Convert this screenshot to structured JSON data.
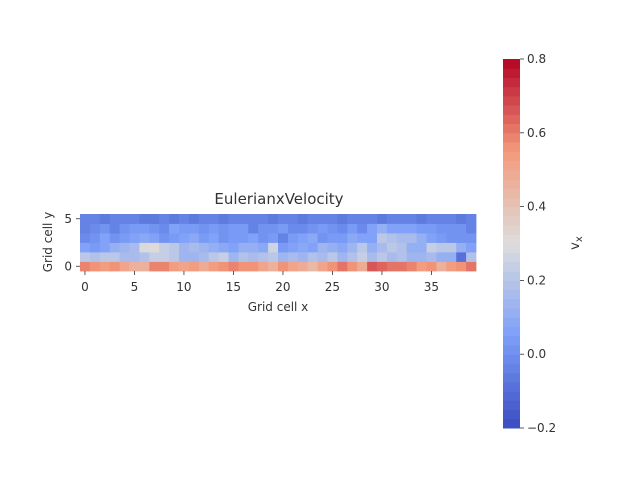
{
  "chart_data": {
    "type": "heatmap",
    "title": "EulerianxVelocity",
    "xlabel": "Grid cell x",
    "ylabel": "Grid cell y",
    "x_ticks": [
      0,
      5,
      10,
      15,
      20,
      25,
      30,
      35
    ],
    "y_ticks": [
      0,
      5
    ],
    "n_cols": 40,
    "n_rows": 6,
    "colorbar": {
      "label": "v",
      "label_subscript": "x",
      "min": -0.2,
      "max": 0.8,
      "ticks": [
        -0.2,
        0.0,
        0.2,
        0.4,
        0.6,
        0.8
      ],
      "tick_labels": [
        "−0.2",
        "0.0",
        "0.2",
        "0.4",
        "0.6",
        "0.8"
      ],
      "colormap": "coolwarm",
      "levels": 40
    },
    "values": [
      [
        0.58,
        0.56,
        0.53,
        0.55,
        0.52,
        0.47,
        0.46,
        0.58,
        0.59,
        0.53,
        0.51,
        0.54,
        0.48,
        0.54,
        0.55,
        0.59,
        0.56,
        0.57,
        0.5,
        0.46,
        0.56,
        0.52,
        0.48,
        0.43,
        0.52,
        0.57,
        0.6,
        0.56,
        0.48,
        0.67,
        0.64,
        0.61,
        0.62,
        0.58,
        0.53,
        0.57,
        0.46,
        0.54,
        0.56,
        0.62
      ],
      [
        0.22,
        0.18,
        0.2,
        0.21,
        0.17,
        0.16,
        0.18,
        0.24,
        0.23,
        0.2,
        0.14,
        0.13,
        0.15,
        0.21,
        0.24,
        0.14,
        0.19,
        0.17,
        0.18,
        0.2,
        0.13,
        0.16,
        0.14,
        0.19,
        0.16,
        0.21,
        0.14,
        0.18,
        0.23,
        0.17,
        0.21,
        0.16,
        0.19,
        0.14,
        0.13,
        0.16,
        0.12,
        0.1,
        -0.08,
        0.19
      ],
      [
        0.05,
        0.03,
        0.07,
        0.12,
        0.14,
        0.16,
        0.28,
        0.3,
        0.24,
        0.2,
        0.14,
        0.16,
        0.13,
        0.1,
        0.08,
        0.06,
        0.1,
        0.12,
        0.09,
        0.26,
        0.03,
        0.05,
        0.09,
        0.05,
        0.14,
        0.1,
        0.08,
        0.14,
        0.2,
        0.12,
        0.17,
        0.2,
        0.18,
        0.12,
        0.1,
        0.23,
        0.22,
        0.2,
        0.1,
        0.05
      ],
      [
        -0.02,
        0.0,
        0.06,
        0.02,
        0.03,
        0.07,
        0.08,
        0.05,
        0.0,
        0.03,
        0.05,
        0.08,
        0.04,
        0.06,
        0.02,
        0.04,
        0.03,
        0.06,
        0.02,
        0.03,
        -0.05,
        0.03,
        0.06,
        0.08,
        0.02,
        0.03,
        0.04,
        0.08,
        0.05,
        0.06,
        0.2,
        0.18,
        0.16,
        0.15,
        0.12,
        0.05,
        0.03,
        0.0,
        0.02,
        0.02
      ],
      [
        -0.04,
        -0.02,
        0.01,
        -0.03,
        0.02,
        0.03,
        0.04,
        0.01,
        -0.01,
        0.06,
        0.03,
        0.03,
        0.0,
        0.04,
        0.02,
        0.04,
        0.03,
        -0.03,
        0.0,
        0.02,
        0.03,
        -0.02,
        -0.01,
        0.02,
        0.03,
        0.0,
        -0.02,
        0.04,
        -0.01,
        0.05,
        0.1,
        0.06,
        0.05,
        0.06,
        0.04,
        0.03,
        0.0,
        0.02,
        0.01,
        -0.03
      ],
      [
        -0.05,
        -0.04,
        -0.06,
        -0.05,
        -0.04,
        -0.05,
        -0.06,
        -0.07,
        -0.05,
        -0.06,
        -0.03,
        -0.06,
        -0.05,
        -0.04,
        -0.06,
        -0.03,
        -0.04,
        -0.05,
        -0.03,
        -0.06,
        -0.04,
        -0.05,
        -0.06,
        -0.03,
        -0.04,
        -0.05,
        -0.06,
        -0.04,
        -0.03,
        -0.05,
        -0.06,
        -0.04,
        -0.05,
        -0.03,
        -0.06,
        -0.05,
        -0.04,
        -0.05,
        -0.06,
        -0.05
      ]
    ]
  }
}
